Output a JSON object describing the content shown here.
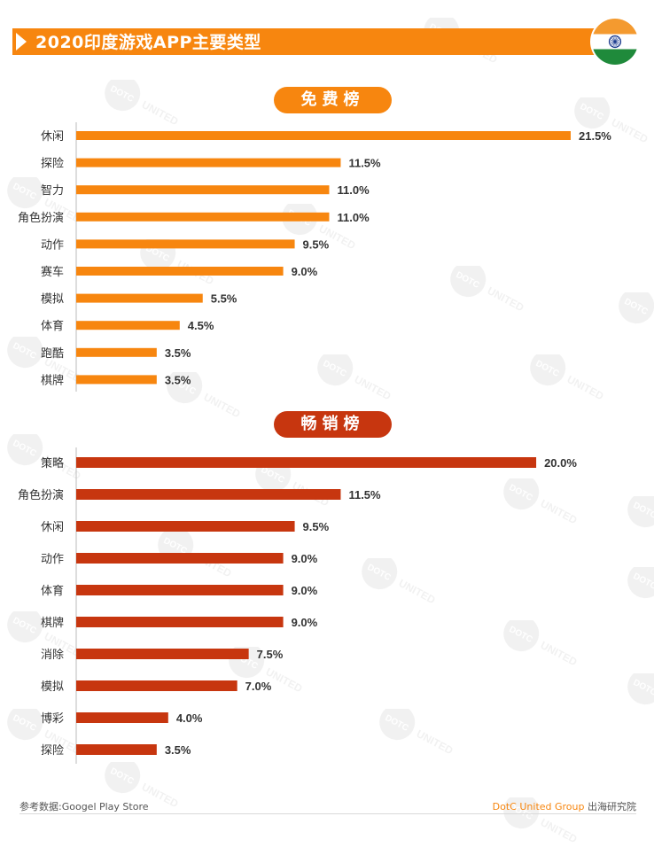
{
  "header": {
    "title": "2020印度游戏APP主要类型"
  },
  "sections": {
    "free_label": "免费榜",
    "top_label": "畅销榜"
  },
  "footer": {
    "source": "参考数据:Googel Play Store",
    "brand": "DotC United Group",
    "brand_suffix": " 出海研究院"
  },
  "watermark": {
    "text": "DOTC UNITED"
  },
  "colors": {
    "header": "#f7860f",
    "free_bar": "#f7860f",
    "top_bar": "#c7360f",
    "flag_saffron": "#f49a2f",
    "flag_green": "#1f8a3b",
    "flag_chakra": "#1d3c8f"
  },
  "chart_data": [
    {
      "type": "bar",
      "orientation": "horizontal",
      "title": "免费榜",
      "categories": [
        "休闲",
        "探险",
        "智力",
        "角色扮演",
        "动作",
        "赛车",
        "模拟",
        "体育",
        "跑酷",
        "棋牌"
      ],
      "values": [
        21.5,
        11.5,
        11.0,
        11.0,
        9.5,
        9.0,
        5.5,
        4.5,
        3.5,
        3.5
      ],
      "labels": [
        "21.5%",
        "11.5%",
        "11.0%",
        "11.0%",
        "9.5%",
        "9.0%",
        "5.5%",
        "4.5%",
        "3.5%",
        "3.5%"
      ],
      "unit": "%"
    },
    {
      "type": "bar",
      "orientation": "horizontal",
      "title": "畅销榜",
      "categories": [
        "策略",
        "角色扮演",
        "休闲",
        "动作",
        "体育",
        "棋牌",
        "消除",
        "模拟",
        "博彩",
        "探险"
      ],
      "values": [
        20.0,
        11.5,
        9.5,
        9.0,
        9.0,
        9.0,
        7.5,
        7.0,
        4.0,
        3.5
      ],
      "labels": [
        "20.0%",
        "11.5%",
        "9.5%",
        "9.0%",
        "9.0%",
        "9.0%",
        "7.5%",
        "7.0%",
        "4.0%",
        "3.5%"
      ],
      "unit": "%"
    }
  ]
}
